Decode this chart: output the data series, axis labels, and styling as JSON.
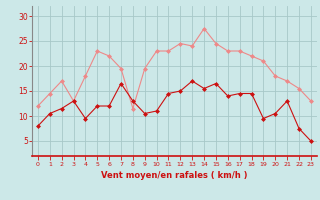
{
  "hours": [
    0,
    1,
    2,
    3,
    4,
    5,
    6,
    7,
    8,
    9,
    10,
    11,
    12,
    13,
    14,
    15,
    16,
    17,
    18,
    19,
    20,
    21,
    22,
    23
  ],
  "wind_avg": [
    8,
    10.5,
    11.5,
    13,
    9.5,
    12,
    12,
    16.5,
    13,
    10.5,
    11,
    14.5,
    15,
    17,
    15.5,
    16.5,
    14,
    14.5,
    14.5,
    9.5,
    10.5,
    13,
    7.5,
    5
  ],
  "wind_gust": [
    12,
    14.5,
    17,
    13,
    18,
    23,
    22,
    19.5,
    11.5,
    19.5,
    23,
    23,
    24.5,
    24,
    27.5,
    24.5,
    23,
    23,
    22,
    21,
    18,
    17,
    15.5,
    13
  ],
  "bg_color": "#cce8e8",
  "grid_color": "#a8c8c8",
  "line_avg_color": "#cc1111",
  "line_gust_color": "#ee8888",
  "tick_label_color": "#cc1111",
  "xlabel": "Vent moyen/en rafales ( km/h )",
  "xlabel_color": "#cc1111",
  "ylim": [
    2,
    32
  ],
  "yticks": [
    5,
    10,
    15,
    20,
    25,
    30
  ],
  "marker": "D",
  "marker_size": 2.0,
  "line_width": 0.8,
  "spine_color": "#888888"
}
